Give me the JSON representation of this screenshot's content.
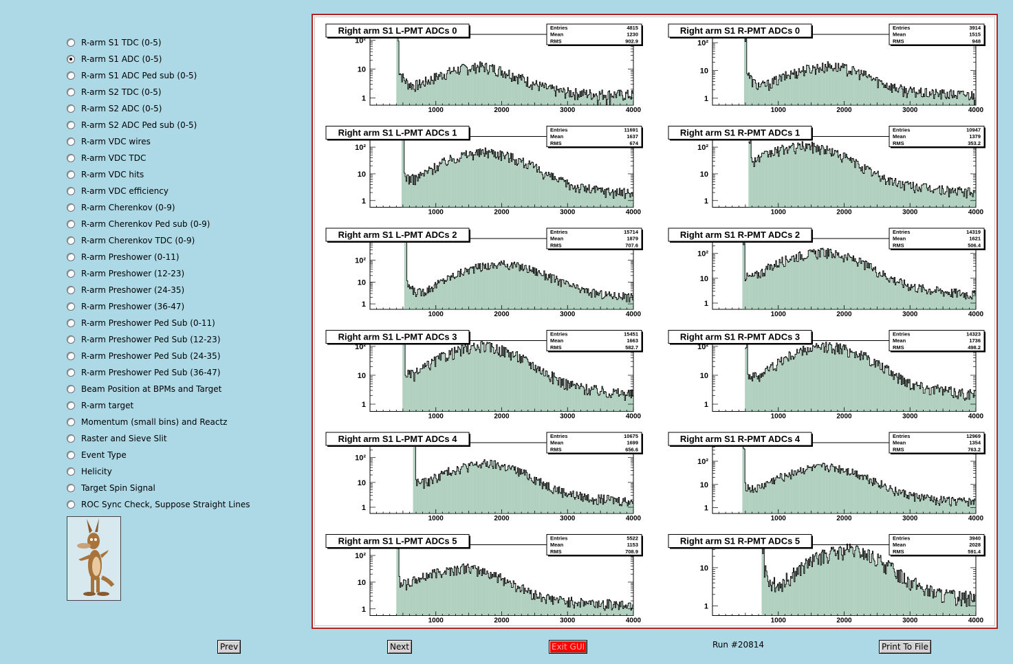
{
  "sidebar": {
    "options": [
      {
        "label": "R-arm S1 TDC (0-5)",
        "selected": false
      },
      {
        "label": "R-arm S1 ADC (0-5)",
        "selected": true
      },
      {
        "label": "R-arm S1 ADC Ped sub (0-5)",
        "selected": false
      },
      {
        "label": "R-arm S2 TDC (0-5)",
        "selected": false
      },
      {
        "label": "R-arm S2 ADC (0-5)",
        "selected": false
      },
      {
        "label": "R-arm S2 ADC Ped sub (0-5)",
        "selected": false
      },
      {
        "label": "R-arm VDC wires",
        "selected": false
      },
      {
        "label": "R-arm VDC TDC",
        "selected": false
      },
      {
        "label": "R-arm VDC hits",
        "selected": false
      },
      {
        "label": "R-arm VDC efficiency",
        "selected": false
      },
      {
        "label": "R-arm Cherenkov (0-9)",
        "selected": false
      },
      {
        "label": "R-arm Cherenkov Ped sub (0-9)",
        "selected": false
      },
      {
        "label": "R-arm Cherenkov TDC (0-9)",
        "selected": false
      },
      {
        "label": "R-arm Preshower (0-11)",
        "selected": false
      },
      {
        "label": "R-arm Preshower (12-23)",
        "selected": false
      },
      {
        "label": "R-arm Preshower (24-35)",
        "selected": false
      },
      {
        "label": "R-arm Preshower (36-47)",
        "selected": false
      },
      {
        "label": "R-arm Preshower Ped Sub (0-11)",
        "selected": false
      },
      {
        "label": "R-arm Preshower Ped Sub (12-23)",
        "selected": false
      },
      {
        "label": "R-arm Preshower Ped Sub (24-35)",
        "selected": false
      },
      {
        "label": "R-arm Preshower Ped Sub (36-47)",
        "selected": false
      },
      {
        "label": "Beam Position at BPMs and Target",
        "selected": false
      },
      {
        "label": "R-arm target",
        "selected": false
      },
      {
        "label": "Momentum (small bins) and Reactz",
        "selected": false
      },
      {
        "label": "Raster and Sieve Slit",
        "selected": false
      },
      {
        "label": "Event Type",
        "selected": false
      },
      {
        "label": "Helicity",
        "selected": false
      },
      {
        "label": "Target Spin Signal",
        "selected": false
      },
      {
        "label": "ROC Sync Check, Suppose Straight Lines",
        "selected": false
      }
    ],
    "logo_icon": "wile-e-coyote-logo"
  },
  "footer": {
    "prev_label": "Prev",
    "next_label": "Next",
    "exit_label": "Exit GUI",
    "run_label": "Run #20814",
    "print_label": "Print To File"
  },
  "colors": {
    "background": "#add8e6",
    "frame": "#b22222",
    "histogram_fill": "#6fa88a",
    "exit_button": "#ff0000"
  },
  "chart_data": [
    {
      "type": "histogram",
      "title": "Right arm S1 L-PMT ADCs 0",
      "stats": {
        "Entries": "4815",
        "Mean": "1230",
        "RMS": "902.9"
      },
      "xticks": [
        "1000",
        "2000",
        "3000",
        "4000"
      ],
      "yticks": [
        "1",
        "10",
        "10²"
      ],
      "xlim": [
        0,
        4000
      ],
      "log_y": true,
      "threshold": 400,
      "peak": {
        "x": 1600,
        "height": 10
      },
      "ymax_decades": 2.2
    },
    {
      "type": "histogram",
      "title": "Right arm S1 R-PMT ADCs 0",
      "stats": {
        "Entries": "3914",
        "Mean": "1515",
        "RMS": "948"
      },
      "xticks": [
        "1000",
        "2000",
        "3000",
        "4000"
      ],
      "yticks": [
        "1",
        "10",
        "10²"
      ],
      "xlim": [
        0,
        4000
      ],
      "log_y": true,
      "threshold": 480,
      "peak": {
        "x": 1700,
        "height": 12
      },
      "ymax_decades": 2.3
    },
    {
      "type": "histogram",
      "title": "Right arm S1 L-PMT ADCs 1",
      "stats": {
        "Entries": "11691",
        "Mean": "1637",
        "RMS": "674"
      },
      "xticks": [
        "1000",
        "2000",
        "3000",
        "4000"
      ],
      "yticks": [
        "1",
        "10",
        "10²"
      ],
      "xlim": [
        0,
        4000
      ],
      "log_y": true,
      "threshold": 480,
      "peak": {
        "x": 1700,
        "height": 60
      },
      "ymax_decades": 2.4
    },
    {
      "type": "histogram",
      "title": "Right arm S1 R-PMT ADCs 1",
      "stats": {
        "Entries": "10947",
        "Mean": "1379",
        "RMS": "353.2"
      },
      "xticks": [
        "1000",
        "2000",
        "3000",
        "4000"
      ],
      "yticks": [
        "1",
        "10",
        "10²"
      ],
      "xlim": [
        0,
        4000
      ],
      "log_y": true,
      "threshold": 550,
      "peak": {
        "x": 1350,
        "height": 100
      },
      "ymax_decades": 2.4
    },
    {
      "type": "histogram",
      "title": "Right arm S1 L-PMT ADCs 2",
      "stats": {
        "Entries": "15714",
        "Mean": "1879",
        "RMS": "707.6"
      },
      "xticks": [
        "1000",
        "2000",
        "3000",
        "4000"
      ],
      "yticks": [
        "1",
        "10",
        "10²"
      ],
      "xlim": [
        0,
        4000
      ],
      "log_y": true,
      "threshold": 520,
      "peak": {
        "x": 1950,
        "height": 60
      },
      "ymax_decades": 3.0
    },
    {
      "type": "histogram",
      "title": "Right arm S1 R-PMT ADCs 2",
      "stats": {
        "Entries": "14319",
        "Mean": "1621",
        "RMS": "506.4"
      },
      "xticks": [
        "1000",
        "2000",
        "3000",
        "4000"
      ],
      "yticks": [
        "1",
        "10",
        "10²"
      ],
      "xlim": [
        0,
        4000
      ],
      "log_y": true,
      "threshold": 450,
      "peak": {
        "x": 1600,
        "height": 100
      },
      "ymax_decades": 2.6
    },
    {
      "type": "histogram",
      "title": "Right arm S1 L-PMT ADCs 3",
      "stats": {
        "Entries": "15451",
        "Mean": "1663",
        "RMS": "582.7"
      },
      "xticks": [
        "1000",
        "2000",
        "3000",
        "4000"
      ],
      "yticks": [
        "1",
        "10",
        "10²"
      ],
      "xlim": [
        0,
        4000
      ],
      "log_y": true,
      "threshold": 500,
      "peak": {
        "x": 1650,
        "height": 90
      },
      "ymax_decades": 2.2
    },
    {
      "type": "histogram",
      "title": "Right arm S1 R-PMT ADCs 3",
      "stats": {
        "Entries": "14323",
        "Mean": "1736",
        "RMS": "498.2"
      },
      "xticks": [
        "1000",
        "2000",
        "3000",
        "4000"
      ],
      "yticks": [
        "1",
        "10",
        "10²"
      ],
      "xlim": [
        0,
        4000
      ],
      "log_y": true,
      "threshold": 500,
      "peak": {
        "x": 1700,
        "height": 90
      },
      "ymax_decades": 2.2
    },
    {
      "type": "histogram",
      "title": "Right arm S1 L-PMT ADCs 4",
      "stats": {
        "Entries": "10675",
        "Mean": "1699",
        "RMS": "656.6"
      },
      "xticks": [
        "1000",
        "2000",
        "3000",
        "4000"
      ],
      "yticks": [
        "1",
        "10",
        "10²"
      ],
      "xlim": [
        0,
        4000
      ],
      "log_y": true,
      "threshold": 650,
      "peak": {
        "x": 1700,
        "height": 50
      },
      "ymax_decades": 2.6
    },
    {
      "type": "histogram",
      "title": "Right arm S1 R-PMT ADCs 4",
      "stats": {
        "Entries": "12969",
        "Mean": "1354",
        "RMS": "763.2"
      },
      "xticks": [
        "1000",
        "2000",
        "3000",
        "4000"
      ],
      "yticks": [
        "1",
        "10",
        "10²"
      ],
      "xlim": [
        0,
        4000
      ],
      "log_y": true,
      "threshold": 450,
      "peak": {
        "x": 1650,
        "height": 50
      },
      "ymax_decades": 2.8
    },
    {
      "type": "histogram",
      "title": "Right arm S1 L-PMT ADCs 5",
      "stats": {
        "Entries": "5522",
        "Mean": "1153",
        "RMS": "708.9"
      },
      "xticks": [
        "1000",
        "2000",
        "3000",
        "4000"
      ],
      "yticks": [
        "1",
        "10",
        "10²"
      ],
      "xlim": [
        0,
        4000
      ],
      "log_y": true,
      "threshold": 400,
      "peak": {
        "x": 1350,
        "height": 30
      },
      "ymax_decades": 2.4
    },
    {
      "type": "histogram",
      "title": "Right arm S1 R-PMT ADCs 5",
      "stats": {
        "Entries": "3940",
        "Mean": "2028",
        "RMS": "591.4"
      },
      "xticks": [
        "1000",
        "2000",
        "3000",
        "4000"
      ],
      "yticks": [
        "1",
        "10"
      ],
      "xlim": [
        0,
        4000
      ],
      "log_y": true,
      "threshold": 750,
      "peak": {
        "x": 2000,
        "height": 25
      },
      "ymax_decades": 1.6
    }
  ]
}
